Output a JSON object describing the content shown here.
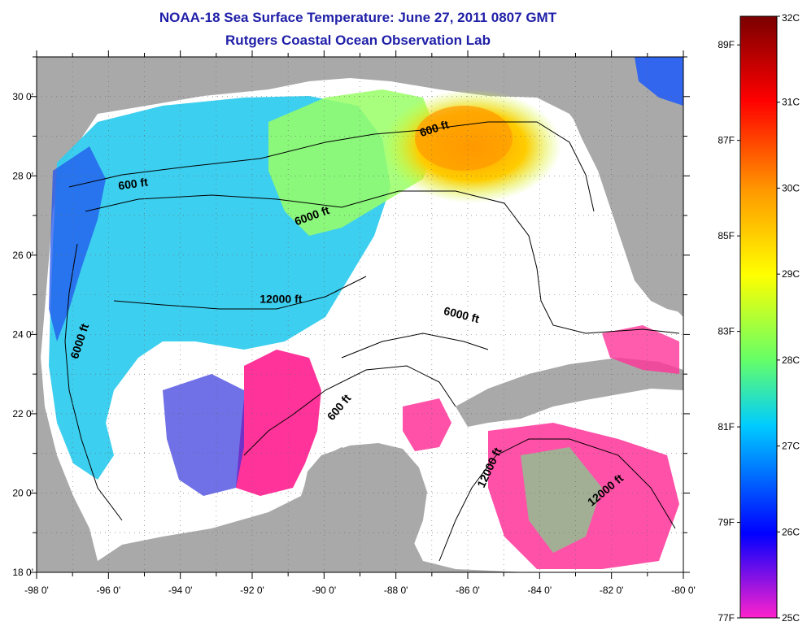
{
  "title": {
    "line1": "NOAA-18 Sea Surface Temperature:  June 27, 2011 0807 GMT",
    "line2": "Rutgers Coastal Ocean Observation Lab"
  },
  "map": {
    "lon_range": [
      -98,
      -80
    ],
    "lat_range": [
      18,
      31
    ],
    "x_ticks": [
      "-98 0'",
      "-96 0'",
      "-94 0'",
      "-92 0'",
      "-90 0'",
      "-88 0'",
      "-86 0'",
      "-84 0'",
      "-82 0'",
      "-80 0'"
    ],
    "y_ticks": [
      "18 0'",
      "20 0'",
      "22 0'",
      "24 0'",
      "26 0'",
      "28 0'",
      "30 0'"
    ],
    "contour_labels": [
      {
        "text": "600 ft",
        "lon": -86.9,
        "lat": 29.1,
        "rotate": -18
      },
      {
        "text": "600 ft",
        "lon": -95.3,
        "lat": 27.7,
        "rotate": -8
      },
      {
        "text": "6000 ft",
        "lon": -90.3,
        "lat": 26.9,
        "rotate": -20
      },
      {
        "text": "12000 ft",
        "lon": -91.2,
        "lat": 24.8,
        "rotate": 0
      },
      {
        "text": "6000 ft",
        "lon": -86.2,
        "lat": 24.4,
        "rotate": 14
      },
      {
        "text": "6000 ft",
        "lon": -96.7,
        "lat": 23.8,
        "rotate": -72
      },
      {
        "text": "600 ft",
        "lon": -89.5,
        "lat": 22.1,
        "rotate": -50
      },
      {
        "text": "12000 ft",
        "lon": -85.3,
        "lat": 20.6,
        "rotate": -65
      },
      {
        "text": "12000 ft",
        "lon": -82.1,
        "lat": 20.0,
        "rotate": -40
      }
    ]
  },
  "colorbar": {
    "celsius_labels": [
      "32C",
      "31C",
      "30C",
      "29C",
      "28C",
      "27C",
      "26C",
      "25C"
    ],
    "fahrenheit_labels": [
      "89F",
      "87F",
      "85F",
      "83F",
      "81F",
      "79F",
      "77F"
    ],
    "colors": {
      "c32": "#7a0000",
      "c31": "#ff0000",
      "c30": "#ff9900",
      "c29": "#ffff00",
      "c28": "#66ff66",
      "c27": "#00ccff",
      "c26": "#0000ff",
      "c25": "#ff22cc"
    }
  },
  "colors": {
    "land": "#a9a9a9",
    "cloud": "#ffffff",
    "title": "#1f1fa8"
  }
}
